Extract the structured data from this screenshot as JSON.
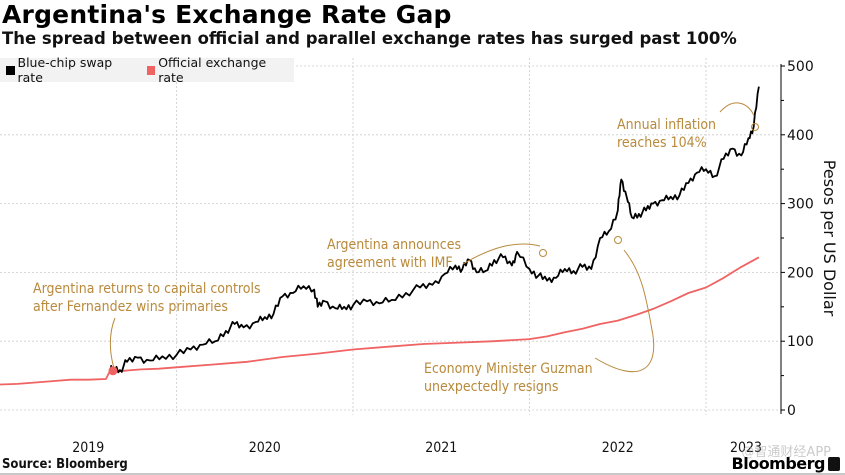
{
  "title": "Argentina's Exchange Rate Gap",
  "subtitle": "The spread between official and parallel exchange rates has surged past 100%",
  "source": "Source: Bloomberg",
  "brand": "Bloomberg",
  "watermark": "@智通财经APP",
  "colors": {
    "blue_chip": "#000000",
    "official": "#f06363",
    "annotation": "#b98a3c",
    "grid": "#cccccc",
    "legend_bg": "#f2f2f2"
  },
  "chart_data": {
    "type": "line",
    "title": "Argentina's Exchange Rate Gap",
    "subtitle": "The spread between official and parallel exchange rates has surged past 100%",
    "xlabel": "",
    "ylabel": "Pesos per US Dollar",
    "ylim": [
      0,
      500
    ],
    "xlim": [
      2019.0,
      2023.3
    ],
    "yticks": [
      0,
      100,
      200,
      300,
      400,
      500
    ],
    "xticks": [
      "2019",
      "2020",
      "2021",
      "2022",
      "2023"
    ],
    "grid": true,
    "legend": "top-left",
    "y_axis_side": "right",
    "series": [
      {
        "name": "Blue-chip swap rate",
        "color": "#000000",
        "x": [
          2019.62,
          2019.64,
          2019.68,
          2019.72,
          2019.78,
          2019.85,
          2019.92,
          2020.0,
          2020.08,
          2020.15,
          2020.22,
          2020.28,
          2020.33,
          2020.38,
          2020.45,
          2020.5,
          2020.55,
          2020.6,
          2020.66,
          2020.72,
          2020.78,
          2020.8,
          2020.84,
          2020.9,
          2020.95,
          2021.0,
          2021.08,
          2021.15,
          2021.22,
          2021.3,
          2021.38,
          2021.45,
          2021.52,
          2021.58,
          2021.62,
          2021.66,
          2021.7,
          2021.75,
          2021.8,
          2021.85,
          2021.9,
          2021.93,
          2022.0,
          2022.05,
          2022.1,
          2022.15,
          2022.2,
          2022.25,
          2022.3,
          2022.35,
          2022.4,
          2022.45,
          2022.5,
          2022.52,
          2022.55,
          2022.58,
          2022.62,
          2022.66,
          2022.7,
          2022.75,
          2022.8,
          2022.85,
          2022.9,
          2022.95,
          2023.0,
          2023.05,
          2023.1,
          2023.15,
          2023.2,
          2023.24,
          2023.27,
          2023.3
        ],
        "values": [
          55,
          62,
          58,
          70,
          76,
          72,
          78,
          80,
          88,
          95,
          100,
          115,
          125,
          120,
          128,
          135,
          140,
          165,
          170,
          180,
          175,
          150,
          158,
          148,
          150,
          152,
          158,
          155,
          160,
          170,
          178,
          182,
          198,
          210,
          205,
          218,
          200,
          202,
          218,
          222,
          210,
          230,
          205,
          195,
          188,
          192,
          205,
          202,
          208,
          205,
          250,
          260,
          290,
          335,
          310,
          280,
          285,
          290,
          300,
          305,
          310,
          312,
          330,
          345,
          350,
          340,
          365,
          380,
          370,
          395,
          412,
          470
        ]
      },
      {
        "name": "Official exchange rate",
        "color": "#f06363",
        "x": [
          2019.0,
          2019.1,
          2019.2,
          2019.3,
          2019.4,
          2019.5,
          2019.6,
          2019.62,
          2019.7,
          2019.8,
          2019.9,
          2020.0,
          2020.2,
          2020.4,
          2020.6,
          2020.8,
          2021.0,
          2021.2,
          2021.4,
          2021.6,
          2021.8,
          2022.0,
          2022.1,
          2022.2,
          2022.3,
          2022.4,
          2022.5,
          2022.6,
          2022.7,
          2022.8,
          2022.9,
          2023.0,
          2023.1,
          2023.2,
          2023.3
        ],
        "values": [
          37,
          38,
          40,
          42,
          44,
          44,
          45,
          55,
          57,
          59,
          60,
          62,
          66,
          70,
          77,
          82,
          88,
          92,
          96,
          98,
          100,
          103,
          107,
          113,
          118,
          125,
          130,
          138,
          147,
          158,
          170,
          178,
          192,
          208,
          222
        ]
      }
    ],
    "annotations": [
      {
        "text": [
          "Argentina returns to capital controls",
          "after Fernandez wins primaries"
        ],
        "target_x": 2019.62,
        "target_y": 60
      },
      {
        "text": [
          "Argentina announces",
          "agreement with IMF"
        ],
        "target_x": 2021.93,
        "target_y": 230
      },
      {
        "text": [
          "Economy Minister Guzman",
          "unexpectedly resigns"
        ],
        "target_x": 2022.5,
        "target_y": 252
      },
      {
        "text": [
          "Annual inflation",
          "reaches 104%"
        ],
        "target_x": 2023.24,
        "target_y": 410
      }
    ]
  }
}
